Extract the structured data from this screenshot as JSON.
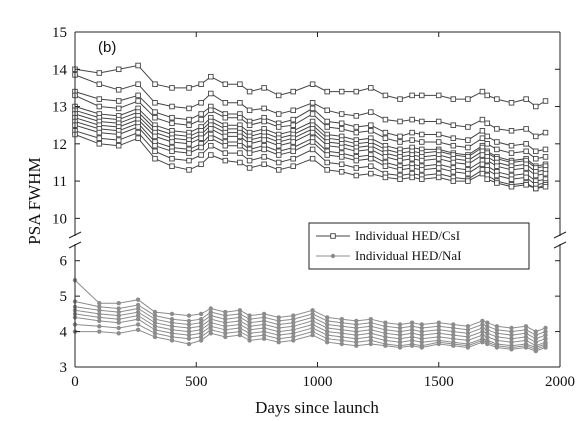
{
  "chart_data": {
    "type": "line",
    "panel_label": "(b)",
    "xlabel": "Days since launch",
    "ylabel": "PSA FWHM",
    "xlim": [
      0,
      2000
    ],
    "x_ticks": [
      0,
      500,
      1000,
      1500,
      2000
    ],
    "y_axis_broken": true,
    "upper_panel": {
      "ylim": [
        9.5,
        15
      ],
      "ticks": [
        10,
        11,
        12,
        13,
        14,
        15
      ]
    },
    "lower_panel": {
      "ylim": [
        3,
        6.5
      ],
      "ticks": [
        3,
        4,
        5,
        6
      ]
    },
    "grid": false,
    "legend_position": "right, between panels",
    "x": [
      0,
      100,
      180,
      260,
      330,
      400,
      470,
      520,
      560,
      620,
      680,
      720,
      780,
      840,
      900,
      980,
      1040,
      1100,
      1160,
      1220,
      1280,
      1340,
      1390,
      1430,
      1500,
      1560,
      1620,
      1680,
      1700,
      1740,
      1800,
      1860,
      1900,
      1940
    ],
    "series": [
      {
        "name": "Individual HED/CsI",
        "color": "#444444",
        "marker": "square",
        "panel": "upper",
        "lines": [
          [
            14.0,
            13.9,
            14.0,
            14.1,
            13.6,
            13.5,
            13.5,
            13.6,
            13.8,
            13.6,
            13.6,
            13.4,
            13.5,
            13.3,
            13.4,
            13.6,
            13.4,
            13.4,
            13.4,
            13.5,
            13.3,
            13.2,
            13.3,
            13.3,
            13.3,
            13.2,
            13.2,
            13.4,
            13.3,
            13.2,
            13.1,
            13.2,
            13.0,
            13.15
          ],
          [
            13.85,
            13.6,
            13.45,
            13.6,
            13.1,
            13.0,
            12.95,
            13.1,
            13.35,
            13.1,
            13.1,
            12.9,
            12.95,
            12.8,
            12.9,
            13.1,
            12.9,
            12.8,
            12.75,
            12.85,
            12.65,
            12.6,
            12.65,
            12.6,
            12.6,
            12.5,
            12.45,
            12.65,
            12.55,
            12.4,
            12.35,
            12.4,
            12.2,
            12.3
          ],
          [
            13.4,
            13.2,
            13.15,
            13.3,
            12.85,
            12.7,
            12.65,
            12.8,
            13.0,
            12.8,
            12.8,
            12.6,
            12.7,
            12.55,
            12.65,
            12.95,
            12.6,
            12.55,
            12.45,
            12.5,
            12.3,
            12.2,
            12.3,
            12.25,
            12.25,
            12.15,
            12.1,
            12.35,
            12.2,
            12.05,
            11.95,
            12.0,
            11.8,
            11.85
          ],
          [
            13.3,
            13.0,
            12.95,
            13.15,
            12.7,
            12.55,
            12.5,
            12.65,
            12.9,
            12.7,
            12.7,
            12.5,
            12.6,
            12.45,
            12.5,
            12.8,
            12.45,
            12.4,
            12.3,
            12.35,
            12.15,
            12.05,
            12.1,
            12.05,
            12.05,
            11.95,
            11.9,
            12.15,
            12.0,
            11.85,
            11.75,
            11.8,
            11.6,
            11.65
          ],
          [
            13.0,
            12.8,
            12.75,
            12.95,
            12.5,
            12.35,
            12.3,
            12.45,
            12.7,
            12.5,
            12.5,
            12.3,
            12.4,
            12.25,
            12.35,
            12.6,
            12.25,
            12.2,
            12.1,
            12.15,
            11.95,
            11.85,
            11.9,
            11.85,
            11.85,
            11.75,
            11.7,
            11.95,
            11.8,
            11.65,
            11.55,
            11.6,
            11.4,
            11.45
          ],
          [
            12.9,
            12.7,
            12.65,
            12.85,
            12.4,
            12.25,
            12.2,
            12.35,
            12.6,
            12.4,
            12.4,
            12.2,
            12.3,
            12.15,
            12.25,
            12.5,
            12.15,
            12.1,
            12.0,
            12.05,
            11.85,
            11.75,
            11.8,
            11.75,
            11.8,
            11.7,
            11.65,
            11.9,
            11.75,
            11.6,
            11.5,
            11.55,
            11.35,
            11.4
          ],
          [
            12.8,
            12.6,
            12.55,
            12.75,
            12.3,
            12.15,
            12.1,
            12.25,
            12.5,
            12.3,
            12.3,
            12.1,
            12.2,
            12.05,
            12.15,
            12.4,
            12.05,
            12.0,
            11.9,
            11.95,
            11.75,
            11.65,
            11.7,
            11.65,
            11.7,
            11.6,
            11.55,
            11.8,
            11.65,
            11.5,
            11.4,
            11.45,
            11.25,
            11.3
          ],
          [
            12.7,
            12.5,
            12.45,
            12.65,
            12.2,
            12.05,
            12.0,
            12.15,
            12.4,
            12.2,
            12.2,
            12.0,
            12.1,
            11.95,
            12.05,
            12.3,
            11.95,
            11.9,
            11.8,
            11.85,
            11.65,
            11.55,
            11.6,
            11.55,
            11.6,
            11.5,
            11.45,
            11.7,
            11.55,
            11.4,
            11.3,
            11.35,
            11.15,
            11.2
          ],
          [
            12.6,
            12.4,
            12.35,
            12.55,
            12.05,
            11.9,
            11.85,
            12.0,
            12.25,
            12.05,
            12.05,
            11.85,
            11.95,
            11.8,
            11.9,
            12.15,
            11.8,
            11.75,
            11.65,
            11.7,
            11.5,
            11.4,
            11.45,
            11.4,
            11.45,
            11.35,
            11.3,
            11.55,
            11.4,
            11.25,
            11.15,
            11.2,
            11.0,
            11.05
          ],
          [
            12.5,
            12.3,
            12.25,
            12.45,
            11.95,
            11.8,
            11.75,
            11.9,
            12.15,
            11.95,
            11.95,
            11.75,
            11.85,
            11.7,
            11.8,
            12.05,
            11.7,
            11.65,
            11.55,
            11.6,
            11.4,
            11.3,
            11.35,
            11.3,
            11.35,
            11.25,
            11.2,
            11.45,
            11.3,
            11.15,
            11.05,
            11.1,
            10.9,
            10.95
          ],
          [
            12.35,
            12.15,
            12.1,
            12.3,
            11.8,
            11.6,
            11.55,
            11.7,
            11.95,
            11.75,
            11.75,
            11.55,
            11.65,
            11.5,
            11.6,
            11.85,
            11.5,
            11.45,
            11.35,
            11.4,
            11.2,
            11.15,
            11.2,
            11.15,
            11.2,
            11.1,
            11.05,
            11.3,
            11.15,
            11.0,
            10.9,
            10.95,
            10.8,
            10.9
          ],
          [
            12.25,
            12.0,
            11.95,
            12.15,
            11.6,
            11.4,
            11.3,
            11.45,
            11.7,
            11.55,
            11.5,
            11.35,
            11.45,
            11.3,
            11.4,
            11.6,
            11.3,
            11.25,
            11.15,
            11.2,
            11.1,
            11.05,
            11.1,
            11.05,
            11.1,
            11.0,
            11.0,
            11.2,
            11.05,
            10.95,
            10.85,
            10.9,
            10.8,
            10.85
          ]
        ]
      },
      {
        "name": "Individual HED/NaI",
        "color": "#8c8c8c",
        "marker": "circle",
        "panel": "lower",
        "lines": [
          [
            5.45,
            4.8,
            4.8,
            4.9,
            4.55,
            4.5,
            4.45,
            4.5,
            4.65,
            4.55,
            4.6,
            4.45,
            4.5,
            4.4,
            4.45,
            4.6,
            4.4,
            4.35,
            4.3,
            4.35,
            4.25,
            4.2,
            4.25,
            4.2,
            4.25,
            4.2,
            4.15,
            4.3,
            4.25,
            4.15,
            4.1,
            4.15,
            4.0,
            4.1
          ],
          [
            4.85,
            4.7,
            4.65,
            4.75,
            4.45,
            4.35,
            4.3,
            4.35,
            4.55,
            4.45,
            4.5,
            4.35,
            4.4,
            4.3,
            4.35,
            4.5,
            4.3,
            4.25,
            4.2,
            4.25,
            4.15,
            4.1,
            4.15,
            4.1,
            4.15,
            4.1,
            4.05,
            4.2,
            4.15,
            4.05,
            4.0,
            4.05,
            3.9,
            4.0
          ],
          [
            4.7,
            4.6,
            4.55,
            4.65,
            4.35,
            4.25,
            4.2,
            4.25,
            4.45,
            4.35,
            4.4,
            4.25,
            4.3,
            4.2,
            4.25,
            4.4,
            4.2,
            4.15,
            4.1,
            4.15,
            4.05,
            4.0,
            4.05,
            4.0,
            4.05,
            4.0,
            3.95,
            4.1,
            4.05,
            3.95,
            3.9,
            3.95,
            3.8,
            3.9
          ],
          [
            4.6,
            4.5,
            4.45,
            4.55,
            4.25,
            4.15,
            4.1,
            4.15,
            4.35,
            4.25,
            4.3,
            4.15,
            4.2,
            4.1,
            4.15,
            4.3,
            4.1,
            4.05,
            4.0,
            4.05,
            3.95,
            3.9,
            3.95,
            3.9,
            3.95,
            3.9,
            3.85,
            4.0,
            3.95,
            3.85,
            3.8,
            3.85,
            3.7,
            3.8
          ],
          [
            4.5,
            4.4,
            4.35,
            4.45,
            4.15,
            4.05,
            4.0,
            4.05,
            4.25,
            4.15,
            4.2,
            4.05,
            4.1,
            4.0,
            4.05,
            4.2,
            4.0,
            3.95,
            3.9,
            3.95,
            3.85,
            3.8,
            3.85,
            3.8,
            3.85,
            3.8,
            3.75,
            3.9,
            3.85,
            3.75,
            3.7,
            3.75,
            3.6,
            3.7
          ],
          [
            4.4,
            4.3,
            4.25,
            4.35,
            4.05,
            3.95,
            3.9,
            3.95,
            4.15,
            4.05,
            4.1,
            3.95,
            4.0,
            3.9,
            3.95,
            4.1,
            3.9,
            3.85,
            3.8,
            3.85,
            3.75,
            3.7,
            3.75,
            3.7,
            3.75,
            3.7,
            3.65,
            3.8,
            3.75,
            3.65,
            3.6,
            3.65,
            3.55,
            3.65
          ],
          [
            4.2,
            4.15,
            4.1,
            4.2,
            3.95,
            3.85,
            3.8,
            3.85,
            4.05,
            3.95,
            4.0,
            3.85,
            3.9,
            3.8,
            3.85,
            4.0,
            3.8,
            3.75,
            3.7,
            3.75,
            3.65,
            3.6,
            3.65,
            3.6,
            3.7,
            3.65,
            3.6,
            3.75,
            3.7,
            3.6,
            3.55,
            3.6,
            3.5,
            3.6
          ],
          [
            4.0,
            4.0,
            3.95,
            4.05,
            3.85,
            3.75,
            3.65,
            3.75,
            3.95,
            3.85,
            3.9,
            3.75,
            3.8,
            3.7,
            3.75,
            3.9,
            3.7,
            3.65,
            3.6,
            3.65,
            3.6,
            3.55,
            3.6,
            3.55,
            3.65,
            3.6,
            3.55,
            3.7,
            3.65,
            3.55,
            3.5,
            3.55,
            3.45,
            3.55
          ]
        ]
      }
    ],
    "legend": [
      {
        "label": "Individual HED/CsI",
        "series": 0
      },
      {
        "label": "Individual HED/NaI",
        "series": 1
      }
    ]
  }
}
